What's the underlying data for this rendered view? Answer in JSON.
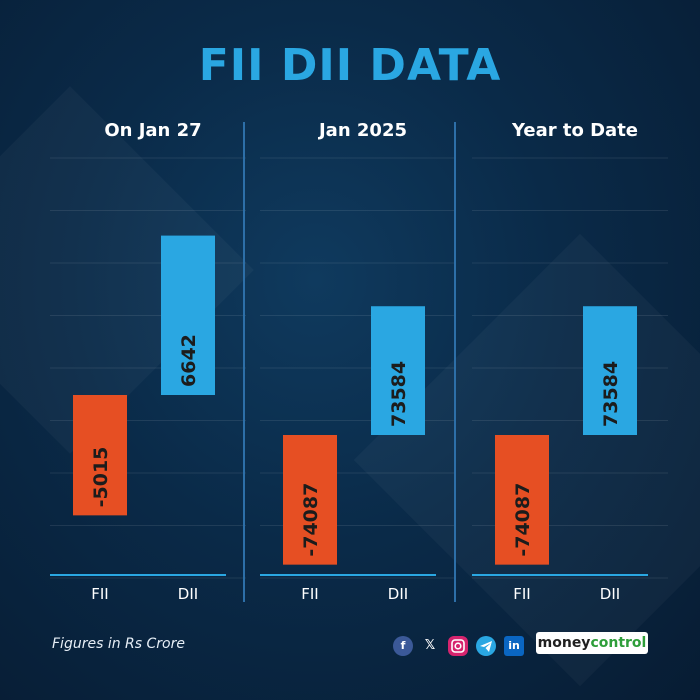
{
  "title": "FII DII DATA",
  "footnote": "Figures in Rs Crore",
  "brand": {
    "part1": "money",
    "part2": "control"
  },
  "social_icons": [
    "facebook-icon",
    "x-icon",
    "instagram-icon",
    "telegram-icon",
    "linkedin-icon"
  ],
  "colors": {
    "fii": "#e64f23",
    "dii": "#2aa7e2",
    "title": "#2aa7e2",
    "background": "#0a2a48"
  },
  "chart_data": [
    {
      "type": "bar",
      "title": "On Jan 27",
      "categories": [
        "FII",
        "DII"
      ],
      "values": [
        -5015,
        6642
      ],
      "ylim": [
        -7500,
        10000
      ]
    },
    {
      "type": "bar",
      "title": "Jan 2025",
      "categories": [
        "FII",
        "DII"
      ],
      "values": [
        -74087,
        73584
      ],
      "ylim": [
        -80000,
        160000
      ]
    },
    {
      "type": "bar",
      "title": "Year to Date",
      "categories": [
        "FII",
        "DII"
      ],
      "values": [
        -74087,
        73584
      ],
      "ylim": [
        -80000,
        160000
      ]
    }
  ]
}
